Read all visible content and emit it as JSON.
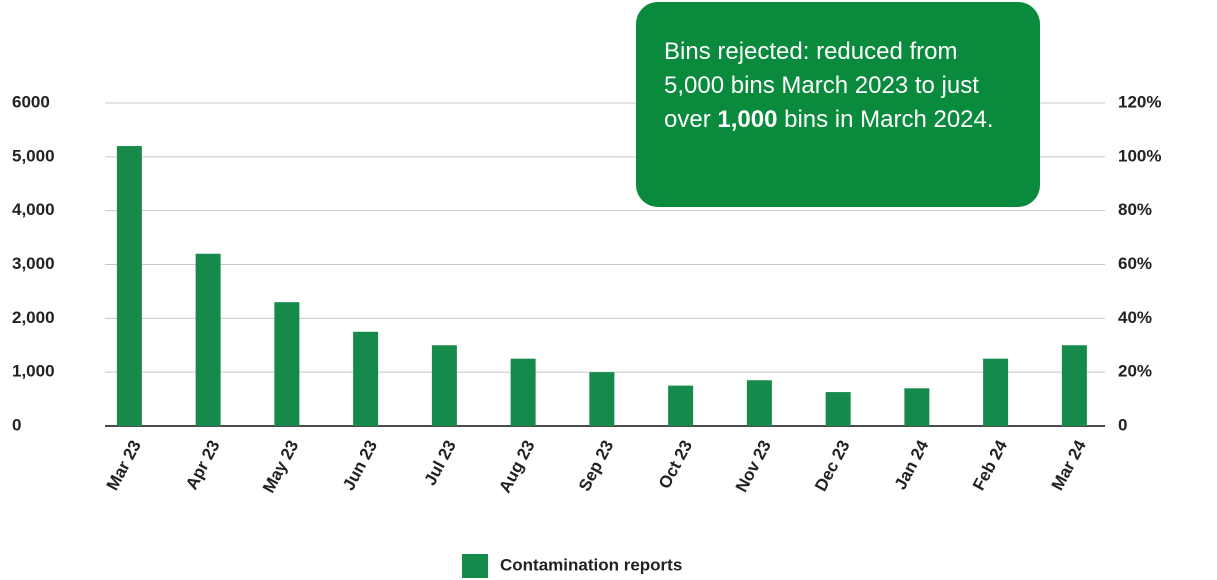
{
  "chart_data": {
    "type": "bar",
    "annotation": [
      "Bins rejected: reduced from 5,000 bins March 2023 to just over ",
      "1,000",
      " bins in March 2024."
    ],
    "categories": [
      "Mar 23",
      "Apr 23",
      "May 23",
      "Jun 23",
      "Jul 23",
      "Aug 23",
      "Sep 23",
      "Oct 23",
      "Nov 23",
      "Dec 23",
      "Jan 24",
      "Feb 24",
      "Mar 24"
    ],
    "series": [
      {
        "name": "Contamination reports",
        "color": "#168a4a",
        "values": [
          5200,
          3200,
          2300,
          1750,
          1500,
          1250,
          1000,
          750,
          850,
          630,
          700,
          1250,
          1500
        ]
      }
    ],
    "ylim": [
      0,
      6000
    ],
    "yticks": [
      0,
      {
        "value": 1000,
        "label": "1,000"
      },
      {
        "value": 2000,
        "label": "2,000"
      },
      {
        "value": 3000,
        "label": "3,000"
      },
      {
        "value": 4000,
        "label": "4,000"
      },
      {
        "value": 5000,
        "label": "5,000"
      },
      6000
    ],
    "y2lim": [
      0,
      120
    ],
    "y2ticks": [
      0,
      {
        "value": 20,
        "label": "20%"
      },
      {
        "value": 40,
        "label": "40%"
      },
      {
        "value": 60,
        "label": "60%"
      },
      {
        "value": 80,
        "label": "80%"
      },
      {
        "value": 100,
        "label": "100%"
      },
      {
        "value": 120,
        "label": "120%"
      }
    ],
    "grid": true
  }
}
